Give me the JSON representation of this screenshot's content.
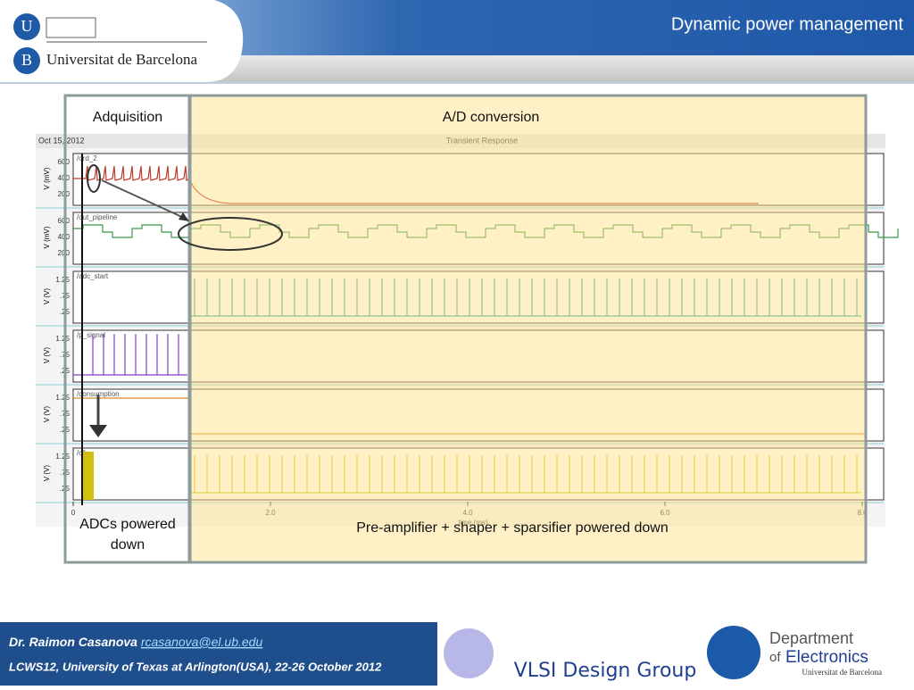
{
  "header": {
    "title": "Dynamic power management",
    "university": "Universitat de Barcelona",
    "logo_letters": [
      "U",
      "B"
    ]
  },
  "regions": {
    "acquisition": "Adquisition",
    "conversion": "A/D conversion",
    "acquisition_caption": "ADCs powered down",
    "conversion_caption": "Pre-amplifier + shaper + sparsifier powered down"
  },
  "plot": {
    "date": "Oct 15, 2012",
    "title": "Transient Response",
    "xlabel": "time (ms)",
    "xticks": [
      "0",
      "2.0",
      "4.0",
      "6.0",
      "8.0"
    ],
    "panels": [
      {
        "signal": "/ord_2",
        "ylabel": "V (mV)",
        "ticks": [
          "600",
          "400",
          "200"
        ]
      },
      {
        "signal": "/out_pipeline",
        "ylabel": "V (mV)",
        "ticks": [
          "600",
          "400",
          "200"
        ]
      },
      {
        "signal": "/adc_start",
        "ylabel": "V (V)",
        "ticks": [
          "1.25",
          ".75",
          ".25"
        ]
      },
      {
        "signal": "/p_signal",
        "ylabel": "V (V)",
        "ticks": [
          "1.25",
          ".75",
          ".25"
        ]
      },
      {
        "signal": "/consumption",
        "ylabel": "V (V)",
        "ticks": [
          "1.25",
          ".75",
          ".25"
        ]
      },
      {
        "signal": "/clk",
        "ylabel": "V (V)",
        "ticks": [
          "1.25",
          ".75",
          ".25"
        ]
      }
    ]
  },
  "footer": {
    "author": "Dr. Raimon Casanova",
    "email": "rcasanova@el.ub.edu",
    "event": "LCWS12, University of Texas at Arlington(USA), 22-26 October 2012",
    "group": "VLSI Design Group",
    "department": [
      "Department",
      "of",
      "Electronics",
      "Universitat de Barcelona"
    ]
  }
}
